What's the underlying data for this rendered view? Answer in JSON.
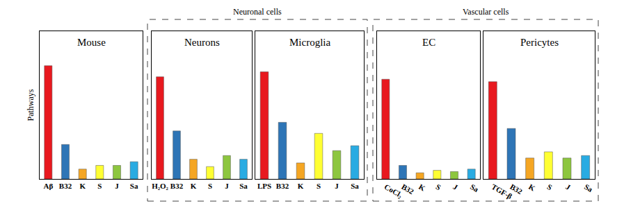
{
  "chart_data": [
    {
      "type": "bar",
      "title": "Mouse",
      "ylabel": "Pathways",
      "categories": [
        "Aβ",
        "B32",
        "K",
        "S",
        "J",
        "Sa"
      ],
      "values": [
        92,
        28,
        8,
        11,
        11,
        14
      ],
      "colors": [
        "#e8191f",
        "#2e75b6",
        "#f5a623",
        "#ffff33",
        "#8dc63f",
        "#29abe2"
      ],
      "ylim": [
        0,
        120
      ],
      "tick_labels": "x"
    },
    {
      "type": "bar",
      "title": "Neurons",
      "categories": [
        "H₂O₂",
        "B32",
        "K",
        "S",
        "J",
        "Sa"
      ],
      "values": [
        83,
        39,
        16,
        10,
        19,
        16
      ],
      "colors": [
        "#e8191f",
        "#2e75b6",
        "#f5a623",
        "#ffff33",
        "#8dc63f",
        "#29abe2"
      ],
      "ylim": [
        0,
        120
      ],
      "tick_labels": "x"
    },
    {
      "type": "bar",
      "title": "Microglia",
      "categories": [
        "LPS",
        "B32",
        "K",
        "S",
        "J",
        "Sa"
      ],
      "values": [
        87,
        46,
        13,
        37,
        23,
        27
      ],
      "colors": [
        "#e8191f",
        "#2e75b6",
        "#f5a623",
        "#ffff33",
        "#8dc63f",
        "#29abe2"
      ],
      "ylim": [
        0,
        120
      ],
      "tick_labels": "x"
    },
    {
      "type": "bar",
      "title": "EC",
      "categories": [
        "CoCl₂",
        "B32",
        "K",
        "S",
        "J",
        "Sa"
      ],
      "values": [
        81,
        11,
        5,
        7,
        6,
        8
      ],
      "colors": [
        "#e8191f",
        "#2e75b6",
        "#f5a623",
        "#ffff33",
        "#8dc63f",
        "#29abe2"
      ],
      "ylim": [
        0,
        120
      ],
      "tick_labels": "x"
    },
    {
      "type": "bar",
      "title": "Pericytes",
      "categories": [
        "TGF-β",
        "B32",
        "K",
        "S",
        "J",
        "Sa"
      ],
      "values": [
        79,
        41,
        17,
        22,
        17,
        19
      ],
      "colors": [
        "#e8191f",
        "#2e75b6",
        "#f5a623",
        "#ffff33",
        "#8dc63f",
        "#29abe2"
      ],
      "ylim": [
        0,
        120
      ],
      "tick_labels": "x"
    }
  ],
  "groups": [
    {
      "title": "Neuronal cells",
      "charts": [
        "Neurons",
        "Microglia"
      ]
    },
    {
      "title": "Vascular cells",
      "charts": [
        "EC",
        "Pericytes"
      ]
    }
  ]
}
